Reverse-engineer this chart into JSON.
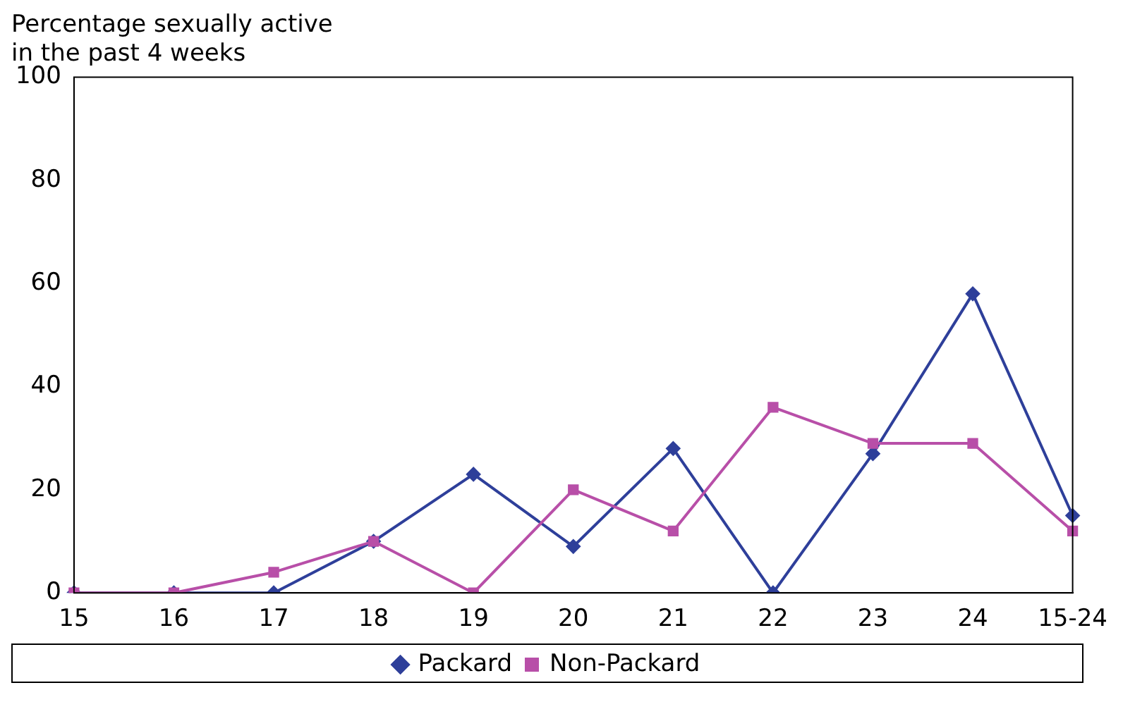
{
  "chart_data": {
    "type": "line",
    "title": "Percentage sexually active\nin the past 4 weeks",
    "categories": [
      "15",
      "16",
      "17",
      "18",
      "19",
      "20",
      "21",
      "22",
      "23",
      "24",
      "15-24"
    ],
    "series": [
      {
        "name": "Packard",
        "color": "#2e3f9a",
        "marker": "diamond",
        "values": [
          0,
          0,
          0,
          10,
          23,
          9,
          28,
          0,
          27,
          58,
          15
        ]
      },
      {
        "name": "Non-Packard",
        "color": "#b84fa8",
        "marker": "square",
        "values": [
          0,
          0,
          4,
          10,
          0,
          20,
          12,
          36,
          29,
          29,
          12
        ]
      }
    ],
    "ylim": [
      0,
      100
    ],
    "yticks": [
      0,
      20,
      40,
      60,
      80,
      100
    ],
    "grid": false,
    "legend": "bottom",
    "line_style": "solid"
  }
}
